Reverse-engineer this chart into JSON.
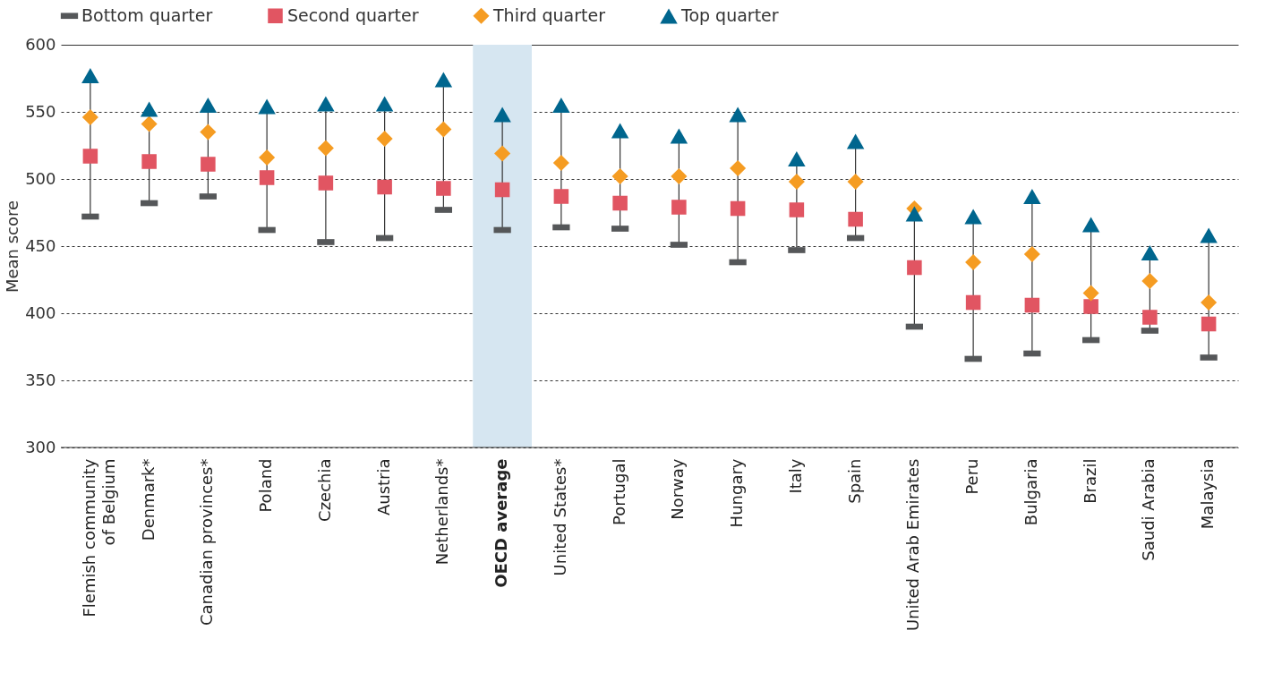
{
  "chart_data": {
    "type": "scatter",
    "ylabel": "Mean score",
    "categories": [
      "Flemish community of Belgium",
      "Denmark*",
      "Canadian provinces*",
      "Poland",
      "Czechia",
      "Austria",
      "Netherlands*",
      "OECD average",
      "United States*",
      "Portugal",
      "Norway",
      "Hungary",
      "Italy",
      "Spain",
      "United Arab Emirates",
      "Peru",
      "Bulgaria",
      "Brazil",
      "Saudi Arabia",
      "Malaysia"
    ],
    "series": [
      {
        "name": "Bottom quarter",
        "color": "#555759",
        "values": [
          472,
          482,
          487,
          462,
          453,
          456,
          477,
          462,
          464,
          463,
          451,
          438,
          447,
          456,
          390,
          366,
          370,
          380,
          387,
          367
        ]
      },
      {
        "name": "Second quarter",
        "color": "#e15562",
        "marker": "square",
        "values": [
          517,
          513,
          511,
          501,
          497,
          494,
          493,
          492,
          487,
          482,
          479,
          478,
          477,
          470,
          434,
          408,
          406,
          405,
          397,
          392
        ]
      },
      {
        "name": "Third quarter",
        "color": "#f59c22",
        "marker": "diamond",
        "values": [
          546,
          541,
          535,
          516,
          523,
          530,
          537,
          519,
          512,
          502,
          502,
          508,
          498,
          498,
          478,
          438,
          444,
          415,
          424,
          408
        ]
      },
      {
        "name": "Top quarter",
        "color": "#00668e",
        "marker": "triangle",
        "values": [
          577,
          552,
          555,
          554,
          556,
          556,
          574,
          548,
          555,
          536,
          532,
          548,
          515,
          528,
          474,
          472,
          487,
          466,
          445,
          458
        ]
      }
    ],
    "ylim": [
      300,
      600
    ],
    "yticks": [
      300,
      350,
      400,
      450,
      500,
      550,
      600
    ],
    "grid": "y",
    "legend": "top",
    "bands": [
      {
        "axis": "x",
        "from": "OECD average",
        "to": "OECD average",
        "color": "#d6e6f1"
      }
    ]
  }
}
